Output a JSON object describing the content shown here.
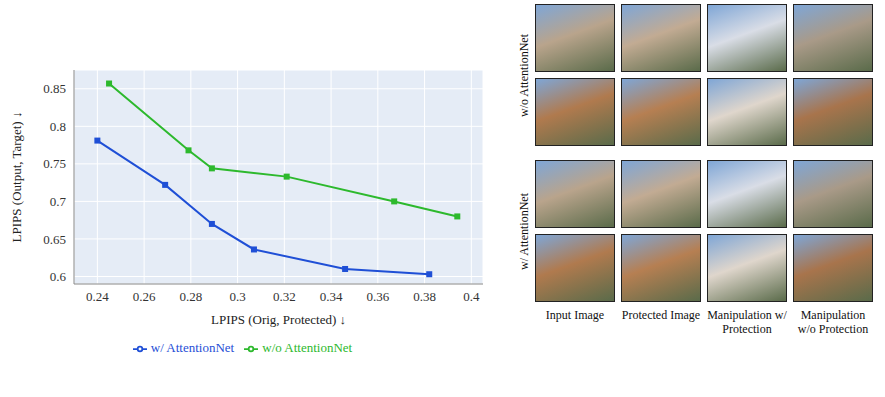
{
  "chart_data": {
    "type": "line",
    "xlabel": "LPIPS (Orig, Protected) ↓",
    "ylabel": "LPIPS (Output, Target) ↓",
    "xlim": [
      0.23,
      0.405
    ],
    "xticks": [
      0.24,
      0.26,
      0.28,
      0.3,
      0.32,
      0.34,
      0.36,
      0.38,
      0.4
    ],
    "ylim": [
      0.59,
      0.875
    ],
    "yticks": [
      0.6,
      0.65,
      0.7,
      0.75,
      0.8,
      0.85
    ],
    "grid": true,
    "legend": "bottom",
    "series": [
      {
        "name": "w/o AttentionNet",
        "color": "#2db92d",
        "marker": "square",
        "x": [
          0.245,
          0.279,
          0.289,
          0.321,
          0.367,
          0.394
        ],
        "values": [
          0.857,
          0.768,
          0.744,
          0.733,
          0.7,
          0.68
        ]
      },
      {
        "name": "w/ AttentionNet",
        "color": "#1f4fd6",
        "marker": "square",
        "x": [
          0.24,
          0.269,
          0.289,
          0.307,
          0.346,
          0.382
        ],
        "values": [
          0.781,
          0.722,
          0.67,
          0.636,
          0.61,
          0.603
        ]
      }
    ]
  },
  "image_grid": {
    "row_groups": [
      "w/o AttentionNet",
      "w/ AttentionNet"
    ],
    "columns": [
      "Input Image",
      "Protected Image",
      "Manipulation w/ Protection",
      "Manipulation w/o Protection"
    ]
  }
}
